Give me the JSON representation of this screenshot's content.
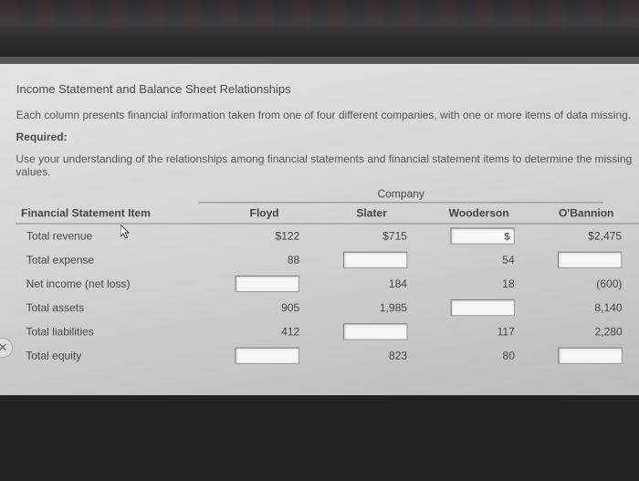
{
  "title": "Income Statement and Balance Sheet Relationships",
  "subtitle": "Each column presents financial information taken from one of four different companies, with one or more items of data missing.",
  "required_label": "Required:",
  "instruction": "Use your understanding of the relationships among financial statements and financial statement items to determine the missing values.",
  "company_header": "Company",
  "fsi_header": "Financial Statement Item",
  "companies": [
    "Floyd",
    "Slater",
    "Wooderson",
    "O'Bannion"
  ],
  "rows": [
    {
      "label": "Total revenue",
      "cells": [
        {
          "type": "text",
          "value": "$122"
        },
        {
          "type": "text",
          "value": "$715"
        },
        {
          "type": "input",
          "value": "$"
        },
        {
          "type": "text",
          "value": "$2,475"
        }
      ]
    },
    {
      "label": "Total expense",
      "cells": [
        {
          "type": "text",
          "value": "88"
        },
        {
          "type": "input",
          "value": ""
        },
        {
          "type": "text",
          "value": "54"
        },
        {
          "type": "input",
          "value": ""
        }
      ]
    },
    {
      "label": "Net income (net loss)",
      "cells": [
        {
          "type": "input",
          "value": ""
        },
        {
          "type": "text",
          "value": "184"
        },
        {
          "type": "text",
          "value": "18"
        },
        {
          "type": "text",
          "value": "(600)"
        }
      ]
    },
    {
      "label": "Total assets",
      "cells": [
        {
          "type": "text",
          "value": "905"
        },
        {
          "type": "text",
          "value": "1,985"
        },
        {
          "type": "input",
          "value": ""
        },
        {
          "type": "text",
          "value": "8,140"
        }
      ]
    },
    {
      "label": "Total liabilities",
      "cells": [
        {
          "type": "text",
          "value": "412"
        },
        {
          "type": "input",
          "value": ""
        },
        {
          "type": "text",
          "value": "117"
        },
        {
          "type": "text",
          "value": "2,280"
        }
      ]
    },
    {
      "label": "Total equity",
      "cells": [
        {
          "type": "input",
          "value": ""
        },
        {
          "type": "text",
          "value": "823"
        },
        {
          "type": "text",
          "value": "80"
        },
        {
          "type": "input",
          "value": ""
        }
      ]
    }
  ],
  "styling": {
    "page_bg_top": "#e2e3e2",
    "page_bg_bottom": "#bcbdbb",
    "text_color": "#4a4a4a",
    "border_color": "#888888",
    "input_bg": "#f6f6f6",
    "input_border": "#999999",
    "font_family": "Arial",
    "title_fontsize": 13,
    "body_fontsize": 12
  }
}
